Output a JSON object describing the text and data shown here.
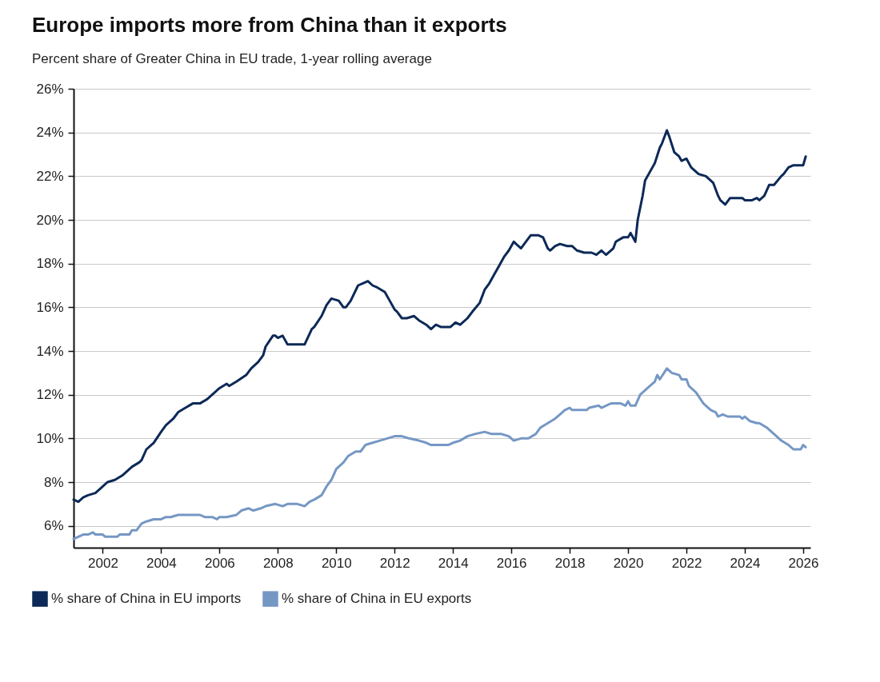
{
  "chart_data": {
    "type": "line",
    "title": "Europe imports more from China than it exports",
    "subtitle": "Percent share of Greater China in EU trade, 1-year rolling average",
    "xlim": [
      "2001-01",
      "2026-04"
    ],
    "xticks": [
      "2002",
      "2004",
      "2006",
      "2008",
      "2010",
      "2012",
      "2014",
      "2016",
      "2018",
      "2020",
      "2022",
      "2024",
      "2026"
    ],
    "ylim": [
      5,
      26
    ],
    "yticks": [
      {
        "value": 6,
        "label": "6%"
      },
      {
        "value": 8,
        "label": "8%"
      },
      {
        "value": 10,
        "label": "10%"
      },
      {
        "value": 12,
        "label": "12%"
      },
      {
        "value": 14,
        "label": "14%"
      },
      {
        "value": 16,
        "label": "16%"
      },
      {
        "value": 18,
        "label": "18%"
      },
      {
        "value": 20,
        "label": "20%"
      },
      {
        "value": 22,
        "label": "22%"
      },
      {
        "value": 24,
        "label": "24%"
      },
      {
        "value": 26,
        "label": "26%"
      }
    ],
    "grid": "y",
    "legend": "bottom",
    "series": [
      {
        "name": "% share of China in EU imports",
        "color": "#0c2957",
        "x": [
          "2001-01",
          "2001-03",
          "2001-05",
          "2001-07",
          "2001-10",
          "2002-01",
          "2002-03",
          "2002-06",
          "2002-09",
          "2003-01",
          "2003-04",
          "2003-05",
          "2003-07",
          "2003-10",
          "2004-01",
          "2004-03",
          "2004-06",
          "2004-08",
          "2004-11",
          "2005-02",
          "2005-05",
          "2005-08",
          "2005-11",
          "2006-01",
          "2006-04",
          "2006-05",
          "2006-08",
          "2006-12",
          "2007-02",
          "2007-05",
          "2007-07",
          "2007-08",
          "2007-11",
          "2007-12",
          "2008-01",
          "2008-03",
          "2008-05",
          "2008-12",
          "2009-03",
          "2009-04",
          "2009-07",
          "2009-09",
          "2009-11",
          "2010-02",
          "2010-04",
          "2010-05",
          "2010-07",
          "2010-10",
          "2010-12",
          "2011-02",
          "2011-04",
          "2011-06",
          "2011-09",
          "2011-11",
          "2012-01",
          "2012-02",
          "2012-04",
          "2012-06",
          "2012-09",
          "2012-11",
          "2013-02",
          "2013-04",
          "2013-06",
          "2013-08",
          "2013-12",
          "2014-02",
          "2014-04",
          "2014-07",
          "2014-09",
          "2014-12",
          "2015-02",
          "2015-04",
          "2015-06",
          "2015-08",
          "2015-10",
          "2015-12",
          "2016-02",
          "2016-03",
          "2016-05",
          "2016-07",
          "2016-09",
          "2016-12",
          "2017-02",
          "2017-04",
          "2017-05",
          "2017-07",
          "2017-09",
          "2017-12",
          "2018-02",
          "2018-04",
          "2018-07",
          "2018-10",
          "2018-12",
          "2019-02",
          "2019-04",
          "2019-07",
          "2019-08",
          "2019-11",
          "2020-01",
          "2020-02",
          "2020-04",
          "2020-05",
          "2020-07",
          "2020-08",
          "2020-10",
          "2020-12",
          "2021-02",
          "2021-03",
          "2021-05",
          "2021-06",
          "2021-08",
          "2021-10",
          "2021-11",
          "2022-01",
          "2022-03",
          "2022-06",
          "2022-09",
          "2022-11",
          "2022-12",
          "2023-02",
          "2023-03",
          "2023-05",
          "2023-07",
          "2023-09",
          "2023-12",
          "2024-01",
          "2024-04",
          "2024-06",
          "2024-07",
          "2024-09",
          "2024-11",
          "2025-01",
          "2025-04",
          "2025-05",
          "2025-07",
          "2025-09",
          "2025-12",
          "2026-01",
          "2026-02"
        ],
        "values": [
          7.2,
          7.1,
          7.3,
          7.4,
          7.5,
          7.8,
          8.0,
          8.1,
          8.3,
          8.7,
          8.9,
          9.0,
          9.5,
          9.8,
          10.3,
          10.6,
          10.9,
          11.2,
          11.4,
          11.6,
          11.6,
          11.8,
          12.1,
          12.3,
          12.5,
          12.4,
          12.6,
          12.9,
          13.2,
          13.5,
          13.8,
          14.2,
          14.7,
          14.7,
          14.6,
          14.7,
          14.3,
          14.3,
          15.0,
          15.1,
          15.6,
          16.1,
          16.4,
          16.3,
          16.0,
          16.0,
          16.3,
          17.0,
          17.1,
          17.2,
          17.0,
          16.9,
          16.7,
          16.3,
          15.9,
          15.8,
          15.5,
          15.5,
          15.6,
          15.4,
          15.2,
          15.0,
          15.2,
          15.1,
          15.1,
          15.3,
          15.2,
          15.5,
          15.8,
          16.2,
          16.8,
          17.1,
          17.5,
          17.9,
          18.3,
          18.6,
          19.0,
          18.9,
          18.7,
          19.0,
          19.3,
          19.3,
          19.2,
          18.7,
          18.6,
          18.8,
          18.9,
          18.8,
          18.8,
          18.6,
          18.5,
          18.5,
          18.4,
          18.6,
          18.4,
          18.7,
          19.0,
          19.2,
          19.2,
          19.4,
          19.0,
          20.0,
          21.1,
          21.8,
          22.2,
          22.6,
          23.3,
          23.5,
          24.1,
          23.8,
          23.1,
          22.9,
          22.7,
          22.8,
          22.4,
          22.1,
          22.0,
          21.8,
          21.7,
          21.1,
          20.9,
          20.7,
          21.0,
          21.0,
          21.0,
          20.9,
          20.9,
          21.0,
          20.9,
          21.1,
          21.6,
          21.6,
          22.0,
          22.1,
          22.4,
          22.5,
          22.5,
          22.5,
          22.9
        ]
      },
      {
        "name": "% share of China in EU exports",
        "color": "#7597c4",
        "x": [
          "2001-01",
          "2001-03",
          "2001-05",
          "2001-07",
          "2001-09",
          "2001-10",
          "2002-01",
          "2002-02",
          "2002-07",
          "2002-08",
          "2002-12",
          "2003-01",
          "2003-03",
          "2003-05",
          "2003-07",
          "2003-10",
          "2004-01",
          "2004-03",
          "2004-05",
          "2004-08",
          "2005-05",
          "2005-07",
          "2005-10",
          "2005-12",
          "2006-01",
          "2006-04",
          "2006-08",
          "2006-10",
          "2007-01",
          "2007-03",
          "2007-06",
          "2007-08",
          "2007-12",
          "2008-03",
          "2008-05",
          "2008-09",
          "2008-12",
          "2009-02",
          "2009-04",
          "2009-07",
          "2009-09",
          "2009-11",
          "2010-01",
          "2010-04",
          "2010-06",
          "2010-09",
          "2010-11",
          "2011-01",
          "2011-04",
          "2011-07",
          "2011-10",
          "2012-01",
          "2012-04",
          "2012-07",
          "2012-11",
          "2013-02",
          "2013-04",
          "2013-11",
          "2014-01",
          "2014-04",
          "2014-07",
          "2014-10",
          "2015-02",
          "2015-05",
          "2015-09",
          "2015-12",
          "2016-02",
          "2016-05",
          "2016-08",
          "2016-11",
          "2017-01",
          "2017-04",
          "2017-07",
          "2017-09",
          "2017-11",
          "2018-01",
          "2018-02",
          "2018-08",
          "2018-09",
          "2019-01",
          "2019-02",
          "2019-06",
          "2019-10",
          "2019-12",
          "2020-01",
          "2020-02",
          "2020-04",
          "2020-06",
          "2020-08",
          "2020-10",
          "2020-12",
          "2021-01",
          "2021-02",
          "2021-05",
          "2021-07",
          "2021-10",
          "2021-11",
          "2022-01",
          "2022-02",
          "2022-05",
          "2022-08",
          "2022-10",
          "2022-11",
          "2023-01",
          "2023-02",
          "2023-04",
          "2023-06",
          "2023-11",
          "2023-12",
          "2024-01",
          "2024-03",
          "2024-06",
          "2024-07",
          "2024-10",
          "2024-12",
          "2025-02",
          "2025-04",
          "2025-07",
          "2025-09",
          "2025-12",
          "2026-01",
          "2026-02"
        ],
        "values": [
          5.4,
          5.5,
          5.6,
          5.6,
          5.7,
          5.6,
          5.6,
          5.5,
          5.5,
          5.6,
          5.6,
          5.8,
          5.8,
          6.1,
          6.2,
          6.3,
          6.3,
          6.4,
          6.4,
          6.5,
          6.5,
          6.4,
          6.4,
          6.3,
          6.4,
          6.4,
          6.5,
          6.7,
          6.8,
          6.7,
          6.8,
          6.9,
          7.0,
          6.9,
          7.0,
          7.0,
          6.9,
          7.1,
          7.2,
          7.4,
          7.8,
          8.1,
          8.6,
          8.9,
          9.2,
          9.4,
          9.4,
          9.7,
          9.8,
          9.9,
          10.0,
          10.1,
          10.1,
          10.0,
          9.9,
          9.8,
          9.7,
          9.7,
          9.8,
          9.9,
          10.1,
          10.2,
          10.3,
          10.2,
          10.2,
          10.1,
          9.9,
          10.0,
          10.0,
          10.2,
          10.5,
          10.7,
          10.9,
          11.1,
          11.3,
          11.4,
          11.3,
          11.3,
          11.4,
          11.5,
          11.4,
          11.6,
          11.6,
          11.5,
          11.7,
          11.5,
          11.5,
          12.0,
          12.2,
          12.4,
          12.6,
          12.9,
          12.7,
          13.2,
          13.0,
          12.9,
          12.7,
          12.7,
          12.4,
          12.1,
          11.6,
          11.4,
          11.3,
          11.2,
          11.0,
          11.1,
          11.0,
          11.0,
          10.9,
          11.0,
          10.8,
          10.7,
          10.7,
          10.5,
          10.3,
          10.1,
          9.9,
          9.7,
          9.5,
          9.5,
          9.7,
          9.6
        ]
      }
    ]
  }
}
